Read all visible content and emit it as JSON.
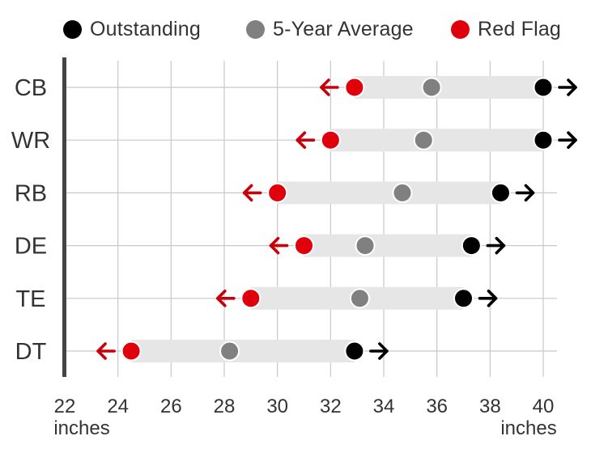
{
  "chart_data": {
    "type": "dot-range",
    "legend": [
      {
        "key": "outstanding",
        "label": "Outstanding",
        "color": "#000000"
      },
      {
        "key": "average",
        "label": "5-Year Average",
        "color": "#808080"
      },
      {
        "key": "red_flag",
        "label": "Red Flag",
        "color": "#e0000b"
      }
    ],
    "categories": [
      "CB",
      "WR",
      "RB",
      "DE",
      "TE",
      "DT"
    ],
    "series": [
      {
        "name": "Red Flag",
        "key": "red_flag",
        "values": [
          32.9,
          32.0,
          30.0,
          31.0,
          29.0,
          24.5
        ]
      },
      {
        "name": "5-Year Average",
        "key": "average",
        "values": [
          35.8,
          35.5,
          34.7,
          33.3,
          33.1,
          28.2
        ]
      },
      {
        "name": "Outstanding",
        "key": "outstanding",
        "values": [
          40.0,
          40.0,
          38.4,
          37.3,
          37.0,
          32.9
        ]
      }
    ],
    "x_ticks": [
      22,
      24,
      26,
      28,
      30,
      32,
      34,
      36,
      38,
      40
    ],
    "xlim": [
      22,
      41
    ],
    "x_unit_left": "inches",
    "x_unit_right": "inches",
    "grid": true,
    "colors": {
      "band": "#e6e6e6",
      "grid": "#c8c8c8",
      "axis": "#444444",
      "arrow_red": "#c8000a",
      "arrow_black": "#000000"
    }
  }
}
